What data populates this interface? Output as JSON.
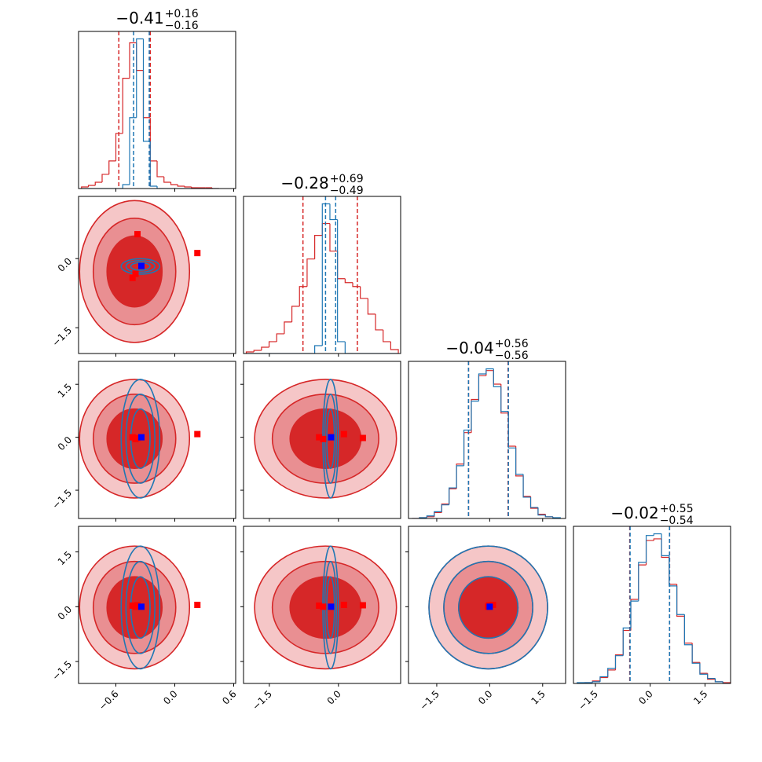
{
  "chart_data": {
    "type": "corner",
    "contour_levels": [
      1.4,
      2.1,
      2.8
    ],
    "parameters": [
      {
        "title": {
          "value": "−0.41",
          "upper": "+0.16",
          "lower": "−0.16"
        },
        "lim": [
          -0.98,
          0.62
        ],
        "ticks": [
          {
            "value": -0.6,
            "label": "−0.6"
          },
          {
            "value": 0,
            "label": "0.0"
          },
          {
            "value": 0.6,
            "label": "0.6"
          }
        ],
        "bins": [
          -0.95,
          -0.88,
          -0.81,
          -0.74,
          -0.67,
          -0.6,
          -0.53,
          -0.46,
          -0.39,
          -0.32,
          -0.25,
          -0.18,
          -0.11,
          -0.04,
          0.03,
          0.1,
          0.17,
          0.24,
          0.31,
          0.38,
          0.45
        ]
      },
      {
        "title": {
          "value": "−0.28",
          "upper": "+0.69",
          "lower": "−0.49"
        },
        "lim": [
          -2.06,
          1.35
        ],
        "ticks": [
          {
            "value": -1.5,
            "label": "−1.5"
          },
          {
            "value": 0,
            "label": "0.0"
          }
        ],
        "bins": [
          -2.0,
          -1.835,
          -1.67,
          -1.505,
          -1.34,
          -1.175,
          -1.01,
          -0.845,
          -0.68,
          -0.515,
          -0.35,
          -0.185,
          -0.02,
          0.145,
          0.31,
          0.475,
          0.64,
          0.805,
          0.97,
          1.135,
          1.3
        ]
      },
      {
        "title": {
          "value": "−0.04",
          "upper": "+0.56",
          "lower": "−0.56"
        },
        "lim": [
          -2.3,
          2.15
        ],
        "ticks": [
          {
            "value": -1.5,
            "label": "−1.5"
          },
          {
            "value": 0,
            "label": "0.0"
          },
          {
            "value": 1.5,
            "label": "1.5"
          }
        ],
        "bins": [
          -2.2,
          -1.99,
          -1.78,
          -1.57,
          -1.36,
          -1.15,
          -0.94,
          -0.73,
          -0.52,
          -0.31,
          -0.1,
          0.11,
          0.32,
          0.53,
          0.74,
          0.95,
          1.16,
          1.37,
          1.58,
          1.79,
          2.0
        ]
      },
      {
        "title": {
          "value": "−0.02",
          "upper": "+0.55",
          "lower": "−0.54"
        },
        "lim": [
          -2.1,
          2.2
        ],
        "ticks": [
          {
            "value": -1.5,
            "label": "−1.5"
          },
          {
            "value": 0,
            "label": "0.0"
          },
          {
            "value": 1.5,
            "label": "1.5"
          }
        ],
        "bins": [
          -2.0,
          -1.79,
          -1.58,
          -1.37,
          -1.16,
          -0.95,
          -0.74,
          -0.53,
          -0.32,
          -0.11,
          0.1,
          0.31,
          0.52,
          0.73,
          0.94,
          1.15,
          1.36,
          1.57,
          1.78,
          1.99,
          2.2
        ]
      }
    ],
    "distributions": [
      {
        "color": "#d62728",
        "fill_colors": [
          "#f5c6c7",
          "#e98f92",
          "#d62728"
        ],
        "mean": [
          -0.41,
          -0.28,
          -0.04,
          -0.02
        ],
        "std": [
          0.2,
          0.55,
          0.6,
          0.6
        ],
        "quantiles": [
          [
            -0.57,
            -0.25
          ],
          [
            -0.77,
            0.41
          ],
          [
            -0.6,
            0.52
          ],
          [
            -0.56,
            0.53
          ]
        ],
        "counts": [
          [
            2,
            4,
            8,
            18,
            35,
            70,
            140,
            185,
            150,
            90,
            35,
            15,
            8,
            5,
            3,
            2,
            1,
            1,
            1,
            0
          ],
          [
            2,
            4,
            8,
            15,
            25,
            40,
            60,
            85,
            120,
            150,
            165,
            130,
            95,
            90,
            85,
            70,
            50,
            30,
            15,
            5
          ],
          [
            0,
            1,
            2,
            7,
            17,
            35,
            64,
            101,
            140,
            168,
            174,
            158,
            124,
            85,
            50,
            26,
            12,
            5,
            2,
            0
          ],
          [
            0,
            1,
            3,
            7,
            16,
            34,
            63,
            100,
            141,
            170,
            172,
            150,
            118,
            80,
            48,
            25,
            12,
            5,
            2,
            1
          ]
        ],
        "points": [
          [
            -0.38,
            0.53,
            -0.02,
            0.04
          ],
          [
            0.23,
            0.12,
            0.09,
            0.05
          ],
          [
            -0.43,
            -0.42,
            0.0,
            0.03
          ],
          [
            -0.4,
            -0.33,
            -0.05,
            0.0
          ]
        ]
      },
      {
        "color": "#1f77b4",
        "mean": [
          -0.35,
          -0.17,
          -0.04,
          -0.02
        ],
        "std": [
          0.07,
          0.06,
          0.6,
          0.6
        ],
        "quantiles": [
          [
            -0.42,
            -0.26
          ],
          [
            -0.28,
            -0.06
          ],
          [
            -0.6,
            0.53
          ],
          [
            -0.55,
            0.53
          ]
        ],
        "counts": [
          [
            0,
            0,
            0,
            0,
            0,
            0,
            5,
            90,
            190,
            60,
            3,
            0,
            0,
            0,
            0,
            0,
            0,
            0,
            0,
            0
          ],
          [
            0,
            0,
            0,
            0,
            0,
            0,
            0,
            0,
            0,
            10,
            190,
            170,
            15,
            0,
            0,
            0,
            0,
            0,
            0,
            0
          ],
          [
            0,
            1,
            3,
            8,
            16,
            36,
            62,
            104,
            138,
            170,
            176,
            155,
            126,
            83,
            52,
            25,
            13,
            4,
            2,
            1
          ],
          [
            1,
            1,
            2,
            8,
            18,
            33,
            66,
            98,
            144,
            176,
            178,
            152,
            116,
            82,
            46,
            24,
            11,
            6,
            2,
            0
          ]
        ],
        "points": [
          [
            -0.34,
            -0.16,
            0.0,
            0.0
          ]
        ]
      }
    ]
  }
}
